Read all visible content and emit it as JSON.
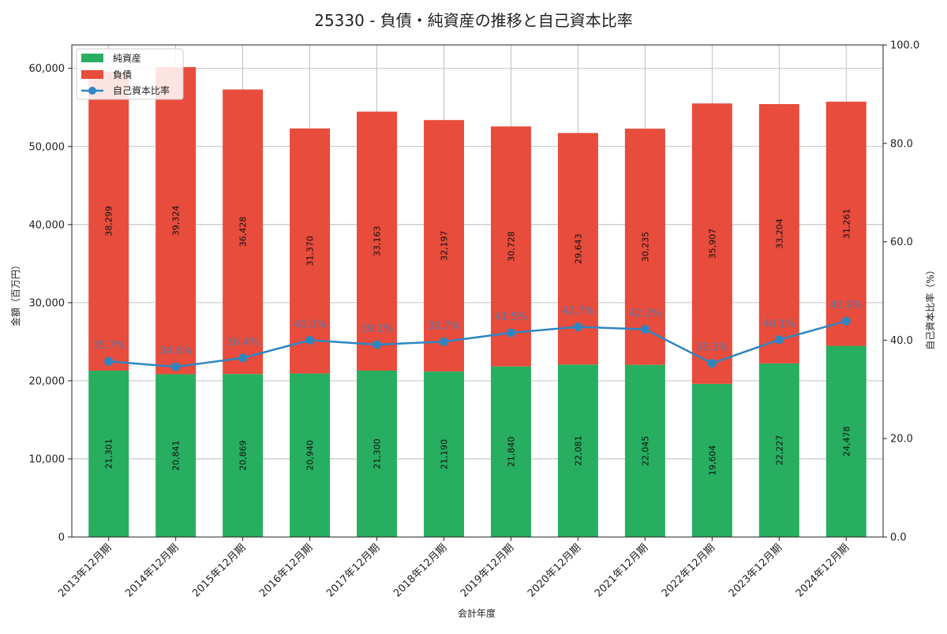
{
  "chart_data": {
    "type": "bar",
    "title": "25330 - 負債・純資産の推移と自己資本比率",
    "xlabel": "会計年度",
    "ylabel": "金額（百万円）",
    "y2label": "自己資本比率（%）",
    "categories": [
      "2013年12月期",
      "2014年12月期",
      "2015年12月期",
      "2016年12月期",
      "2017年12月期",
      "2018年12月期",
      "2019年12月期",
      "2020年12月期",
      "2021年12月期",
      "2022年12月期",
      "2023年12月期",
      "2024年12月期"
    ],
    "series": [
      {
        "name": "純資産",
        "kind": "bar",
        "stack": "bottom",
        "color": "#27ae60",
        "values": [
          21301,
          20841,
          20869,
          20940,
          21300,
          21190,
          21840,
          22081,
          22045,
          19604,
          22227,
          24478
        ],
        "labels": [
          "21,301",
          "20,841",
          "20,869",
          "20,940",
          "21,300",
          "21,190",
          "21,840",
          "22,081",
          "22,045",
          "19,604",
          "22,227",
          "24,478"
        ]
      },
      {
        "name": "負債",
        "kind": "bar",
        "stack": "top",
        "color": "#e74c3c",
        "values": [
          38299,
          39324,
          36428,
          31370,
          33163,
          32197,
          30728,
          29643,
          30235,
          35907,
          33204,
          31261
        ],
        "labels": [
          "38,299",
          "39,324",
          "36,428",
          "31,370",
          "33,163",
          "32,197",
          "30,728",
          "29,643",
          "30,235",
          "35,907",
          "33,204",
          "31,261"
        ]
      },
      {
        "name": "自己資本比率",
        "kind": "line",
        "axis": "right",
        "color": "#2e86c1",
        "values": [
          35.7,
          34.6,
          36.4,
          40.0,
          39.1,
          39.7,
          41.5,
          42.7,
          42.2,
          35.3,
          40.1,
          43.9
        ],
        "labels": [
          "35.7%",
          "34.6%",
          "36.4%",
          "40.0%",
          "39.1%",
          "39.7%",
          "41.5%",
          "42.7%",
          "42.2%",
          "35.3%",
          "40.1%",
          "43.9%"
        ]
      }
    ],
    "ylim": [
      0,
      63000
    ],
    "y_ticks": [
      0,
      10000,
      20000,
      30000,
      40000,
      50000,
      60000
    ],
    "y_tick_labels": [
      "0",
      "10,000",
      "20,000",
      "30,000",
      "40,000",
      "50,000",
      "60,000"
    ],
    "y2lim": [
      0,
      100
    ],
    "y2_ticks": [
      0,
      20,
      40,
      60,
      80,
      100
    ],
    "y2_tick_labels": [
      "0.0",
      "20.0",
      "40.0",
      "60.0",
      "80.0",
      "100.0"
    ],
    "grid": true,
    "legend_position": "top-left",
    "legend": [
      "純資産",
      "負債",
      "自己資本比率"
    ]
  }
}
